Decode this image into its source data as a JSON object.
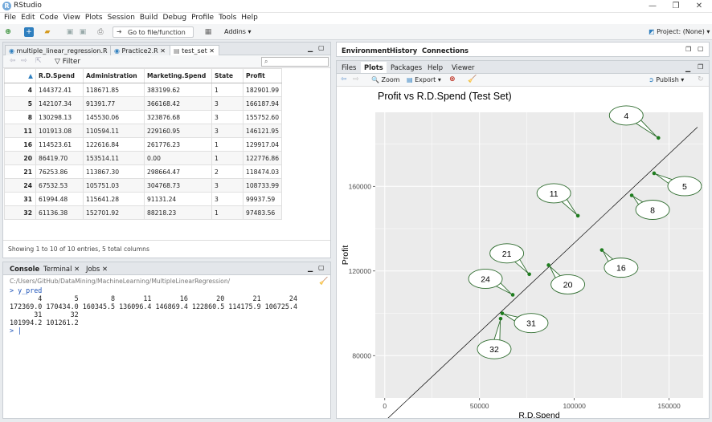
{
  "app": {
    "title": "RStudio"
  },
  "menu": [
    "File",
    "Edit",
    "Code",
    "View",
    "Plots",
    "Session",
    "Build",
    "Debug",
    "Profile",
    "Tools",
    "Help"
  ],
  "toolbar": {
    "goto_placeholder": "Go to file/function",
    "addins": "Addins",
    "project": "Project: (None)"
  },
  "source": {
    "tabs": [
      "multiple_linear_regression.R",
      "Practice2.R",
      "test_set"
    ],
    "filter": "Filter",
    "columns": [
      "R.D.Spend",
      "Administration",
      "Marketing.Spend",
      "State",
      "Profit"
    ],
    "rows": [
      [
        "4",
        "144372.41",
        "118671.85",
        "383199.62",
        "1",
        "182901.99"
      ],
      [
        "5",
        "142107.34",
        "91391.77",
        "366168.42",
        "3",
        "166187.94"
      ],
      [
        "8",
        "130298.13",
        "145530.06",
        "323876.68",
        "3",
        "155752.60"
      ],
      [
        "11",
        "101913.08",
        "110594.11",
        "229160.95",
        "3",
        "146121.95"
      ],
      [
        "16",
        "114523.61",
        "122616.84",
        "261776.23",
        "1",
        "129917.04"
      ],
      [
        "20",
        "86419.70",
        "153514.11",
        "0.00",
        "1",
        "122776.86"
      ],
      [
        "21",
        "76253.86",
        "113867.30",
        "298664.47",
        "2",
        "118474.03"
      ],
      [
        "24",
        "67532.53",
        "105751.03",
        "304768.73",
        "3",
        "108733.99"
      ],
      [
        "31",
        "61994.48",
        "115641.28",
        "91131.24",
        "3",
        "99937.59"
      ],
      [
        "32",
        "61136.38",
        "152701.92",
        "88218.23",
        "1",
        "97483.56"
      ]
    ],
    "status": "Showing 1 to 10 of 10 entries, 5 total columns"
  },
  "console": {
    "tabs": [
      "Console",
      "Terminal",
      "Jobs"
    ],
    "path": "C:/Users/GitHub/DataMining/MachineLearning/MultipleLinearRegression/",
    "lines": [
      "> y_pred",
      "       4        5        8       11       16       20       21       24",
      "172369.0 170434.0 160345.5 136096.4 146869.4 122860.5 114175.9 106725.4",
      "      31       32",
      "101994.2 101261.2",
      "> |"
    ]
  },
  "env": {
    "tabs": [
      "Environment",
      "History",
      "Connections"
    ]
  },
  "files": {
    "tabs": [
      "Files",
      "Plots",
      "Packages",
      "Help",
      "Viewer"
    ],
    "zoom": "Zoom",
    "export": "Export",
    "publish": "Publish"
  },
  "colors": {
    "point": "#1e7d1e",
    "plot_bg": "#ebebeb",
    "line": "#000000"
  },
  "chart_data": {
    "type": "scatter",
    "title": "Profit vs R.D.Spend (Test Set)",
    "xlabel": "R.D.Spend",
    "ylabel": "Profit",
    "xlim": [
      -5000,
      168000
    ],
    "ylim": [
      60000,
      195000
    ],
    "xticks": [
      0,
      50000,
      100000,
      150000
    ],
    "xtick_labels": [
      "0",
      "50000",
      "100000",
      "150000"
    ],
    "yticks": [
      80000,
      120000,
      160000
    ],
    "ytick_labels": [
      "80000",
      "120000",
      "160000"
    ],
    "grid": true,
    "points": [
      {
        "label": "4",
        "x": 144372.41,
        "y": 182901.99
      },
      {
        "label": "5",
        "x": 142107.34,
        "y": 166187.94
      },
      {
        "label": "8",
        "x": 130298.13,
        "y": 155752.6
      },
      {
        "label": "11",
        "x": 101913.08,
        "y": 146121.95
      },
      {
        "label": "16",
        "x": 114523.61,
        "y": 129917.04
      },
      {
        "label": "20",
        "x": 86419.7,
        "y": 122776.86
      },
      {
        "label": "21",
        "x": 76253.86,
        "y": 118474.03
      },
      {
        "label": "24",
        "x": 67532.53,
        "y": 108733.99
      },
      {
        "label": "31",
        "x": 61994.48,
        "y": 99937.59
      },
      {
        "label": "32",
        "x": 61136.38,
        "y": 97483.56
      }
    ],
    "fit_line": [
      {
        "x": 0,
        "y": 49000
      },
      {
        "x": 165000,
        "y": 188000
      }
    ]
  }
}
